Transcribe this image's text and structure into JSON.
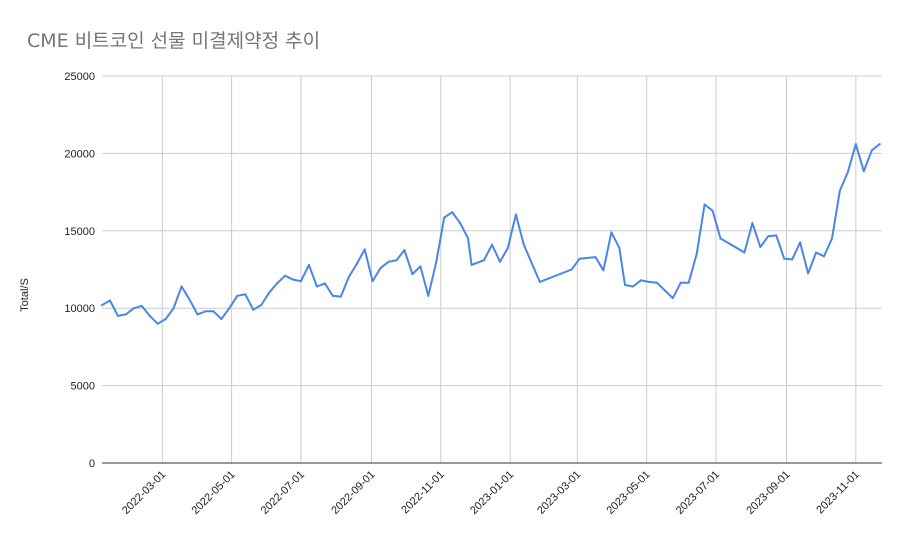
{
  "chart_data": {
    "type": "line",
    "title": "CME 비트코인 선물 미결제약정 추이",
    "ylabel": "Total/S",
    "xlabel": "",
    "ylim": [
      0,
      25000
    ],
    "yticks": [
      0,
      5000,
      10000,
      15000,
      20000,
      25000
    ],
    "xlim": [
      "2022-01-07",
      "2023-11-24"
    ],
    "xticks": [
      "2022-03-01",
      "2022-05-01",
      "2022-07-01",
      "2022-09-01",
      "2022-11-01",
      "2023-01-01",
      "2023-03-01",
      "2023-05-01",
      "2023-07-01",
      "2023-09-01",
      "2023-11-01"
    ],
    "grid": true,
    "color": "#4a86e8",
    "series": [
      {
        "x": [
          "2022-01-07",
          "2022-01-14",
          "2022-01-21",
          "2022-01-28",
          "2022-02-04",
          "2022-02-11",
          "2022-02-18",
          "2022-02-25",
          "2022-03-04",
          "2022-03-11",
          "2022-03-18",
          "2022-03-25",
          "2022-04-01",
          "2022-04-08",
          "2022-04-15",
          "2022-04-22",
          "2022-04-29",
          "2022-05-06",
          "2022-05-13",
          "2022-05-20",
          "2022-05-27",
          "2022-06-03",
          "2022-06-10",
          "2022-06-17",
          "2022-06-24",
          "2022-07-01",
          "2022-07-08",
          "2022-07-15",
          "2022-07-22",
          "2022-07-29",
          "2022-08-05",
          "2022-08-12",
          "2022-08-19",
          "2022-08-26",
          "2022-09-02",
          "2022-09-09",
          "2022-09-16",
          "2022-09-23",
          "2022-09-30",
          "2022-10-07",
          "2022-10-14",
          "2022-10-21",
          "2022-10-28",
          "2022-11-04",
          "2022-11-11",
          "2022-11-18",
          "2022-11-25",
          "2022-11-28",
          "2022-12-09",
          "2022-12-16",
          "2022-12-23",
          "2022-12-30",
          "2023-01-06",
          "2023-01-13",
          "2023-01-27",
          "2023-02-24",
          "2023-03-03",
          "2023-03-17",
          "2023-03-24",
          "2023-03-31",
          "2023-04-07",
          "2023-04-12",
          "2023-04-19",
          "2023-04-26",
          "2023-05-03",
          "2023-05-10",
          "2023-05-24",
          "2023-05-31",
          "2023-06-07",
          "2023-06-14",
          "2023-06-21",
          "2023-06-28",
          "2023-07-05",
          "2023-07-19",
          "2023-07-26",
          "2023-08-02",
          "2023-08-09",
          "2023-08-16",
          "2023-08-23",
          "2023-08-30",
          "2023-09-06",
          "2023-09-13",
          "2023-09-20",
          "2023-09-27",
          "2023-10-04",
          "2023-10-11",
          "2023-10-18",
          "2023-10-25",
          "2023-11-01",
          "2023-11-08",
          "2023-11-15",
          "2023-11-22"
        ],
        "values": [
          10200,
          10500,
          9500,
          9600,
          10000,
          10150,
          9500,
          9000,
          9300,
          10000,
          11400,
          10550,
          9600,
          9800,
          9800,
          9300,
          10000,
          10800,
          10900,
          9900,
          10200,
          11000,
          11600,
          12100,
          11850,
          11750,
          12800,
          11400,
          11600,
          10800,
          10750,
          12000,
          12850,
          13800,
          11750,
          12600,
          13000,
          13100,
          13750,
          12200,
          12700,
          10800,
          13000,
          15850,
          16200,
          15500,
          14500,
          12800,
          13100,
          14100,
          13000,
          13900,
          16050,
          14100,
          11700,
          12500,
          13200,
          13300,
          12450,
          14900,
          13900,
          11500,
          11400,
          11800,
          11700,
          11650,
          10650,
          11650,
          11650,
          13500,
          16700,
          16300,
          14500,
          13900,
          13600,
          15500,
          13950,
          14650,
          14700,
          13200,
          13150,
          14250,
          12250,
          13600,
          13350,
          14500,
          17600,
          18800,
          20600,
          18850,
          20200,
          20600
        ]
      }
    ]
  }
}
